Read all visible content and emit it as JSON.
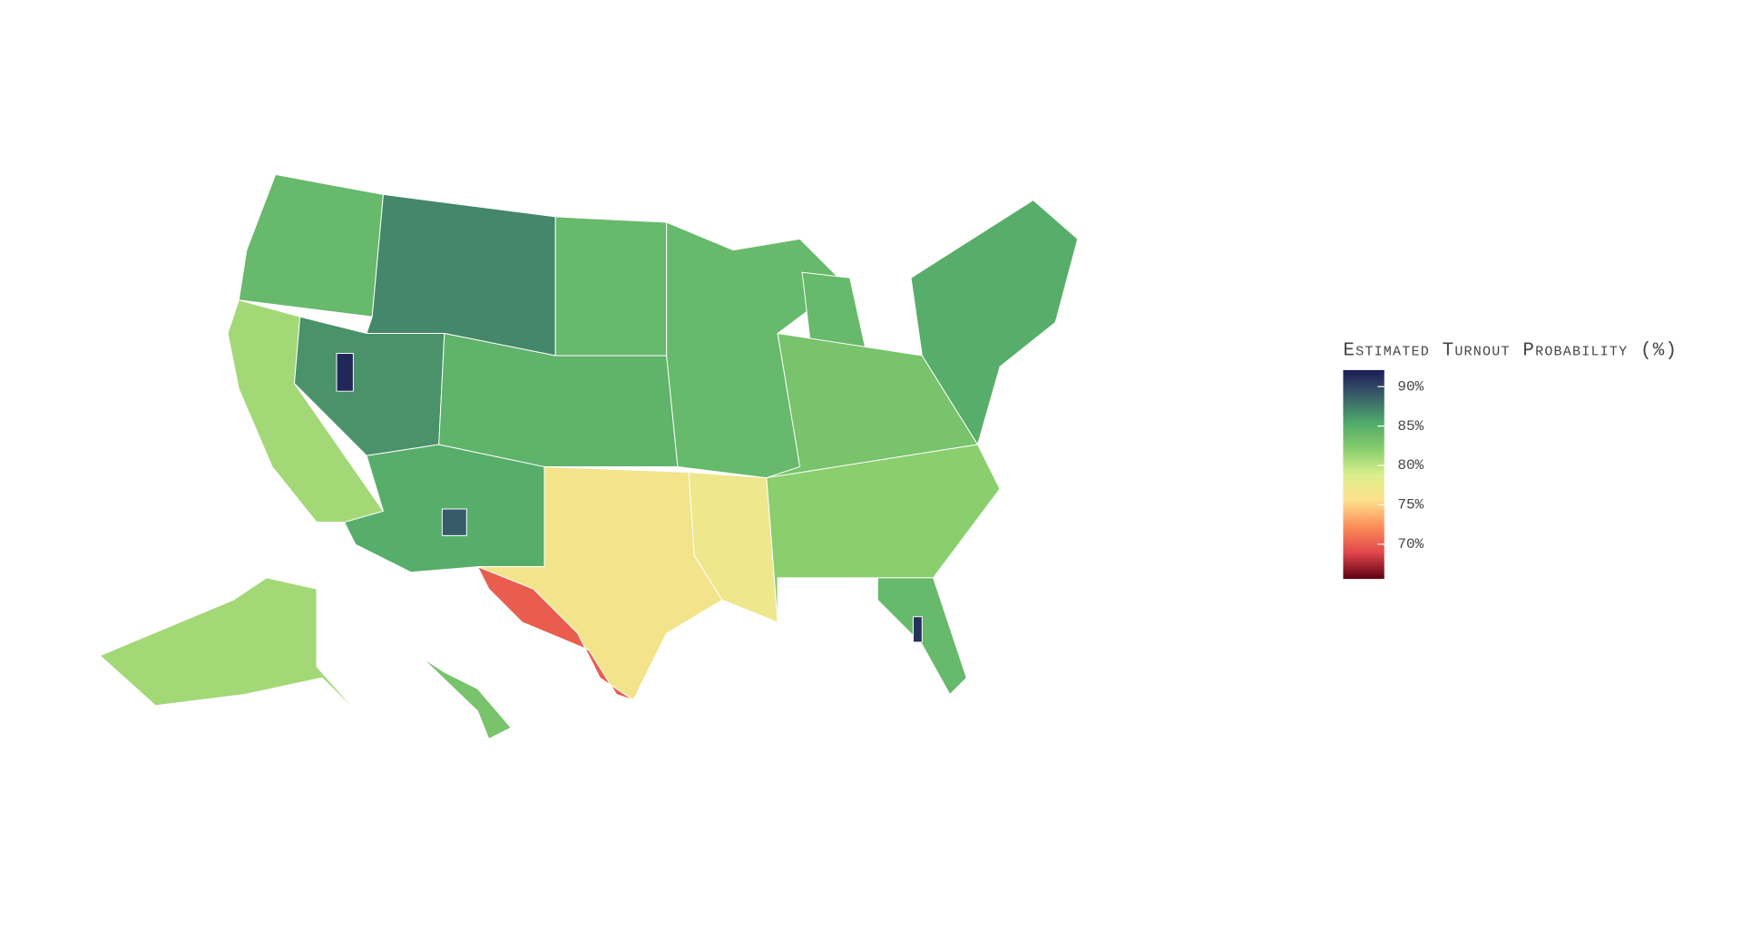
{
  "chart_data": {
    "type": "choropleth",
    "colorbar_title": "Estimated Turnout Probability (%)",
    "clim": [
      65.6,
      92.1
    ],
    "colorscale": [
      "#5e0010",
      "#e0464a",
      "#fb8d59",
      "#fee08b",
      "#d9ef8b",
      "#86cc6c",
      "#4fa96a",
      "#3a5f6a",
      "#1c1c55"
    ],
    "colorbar_ticks": [
      {
        "value": 90,
        "label": "90%"
      },
      {
        "value": 85,
        "label": "85%"
      },
      {
        "value": 80,
        "label": "80%"
      },
      {
        "value": 75,
        "label": "75%"
      },
      {
        "value": 70,
        "label": "70%"
      }
    ],
    "values": [
      84,
      87,
      81,
      86.5,
      85,
      84.5,
      84,
      76.5,
      70,
      77,
      84,
      84,
      83,
      82,
      84,
      85,
      81,
      83,
      91.5,
      91,
      89
    ]
  }
}
